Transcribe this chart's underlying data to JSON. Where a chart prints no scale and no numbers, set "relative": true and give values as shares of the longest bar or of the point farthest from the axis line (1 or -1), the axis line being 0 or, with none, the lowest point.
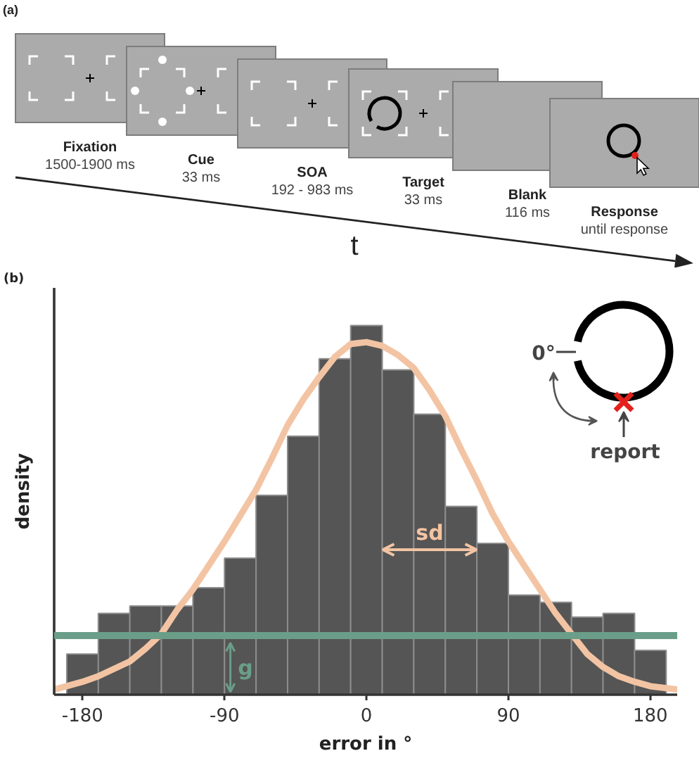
{
  "chart_data": [
    {
      "type": "other",
      "title": "(a)",
      "xlabel": "t",
      "annotations": [
        "Fixation",
        "1500-1900 ms",
        "Cue",
        "33 ms",
        "SOA",
        "192 - 983 ms",
        "Target",
        "33 ms",
        "Blank",
        "116 ms",
        "Response",
        "until response"
      ]
    },
    {
      "type": "histogram",
      "title": "(b)",
      "xlabel": "error in °",
      "ylabel": "density",
      "relative": true,
      "bins": [
        -190,
        -170,
        -150,
        -130,
        -110,
        -90,
        -70,
        -50,
        -30,
        -10,
        10,
        30,
        50,
        70,
        90,
        110,
        130,
        150,
        170,
        190
      ],
      "xlim": [
        -198,
        197
      ],
      "xticks": [
        -180,
        -90,
        0,
        90,
        180
      ],
      "series": [
        {
          "color": "#555555",
          "values": [
            0.11,
            0.22,
            0.24,
            0.24,
            0.29,
            0.37,
            0.54,
            0.7,
            0.91,
            1,
            0.88,
            0.76,
            0.51,
            0.41,
            0.27,
            0.25,
            0.21,
            0.22,
            0.12
          ]
        },
        {
          "type": "line",
          "color": "#f3c4a3",
          "x": [
            -197,
            -180,
            -170,
            -160,
            -150,
            -140,
            -130,
            -120,
            -110,
            -100,
            -90,
            -80,
            -70,
            -60,
            -50,
            -40,
            -30,
            -20,
            -10,
            0,
            10,
            20,
            30,
            40,
            50,
            60,
            70,
            80,
            90,
            100,
            110,
            120,
            130,
            140,
            150,
            160,
            170,
            180,
            197
          ],
          "values": [
            0.015,
            0.035,
            0.05,
            0.07,
            0.09,
            0.125,
            0.165,
            0.23,
            0.285,
            0.35,
            0.415,
            0.485,
            0.555,
            0.64,
            0.73,
            0.8,
            0.86,
            0.915,
            0.95,
            0.955,
            0.945,
            0.92,
            0.885,
            0.825,
            0.755,
            0.665,
            0.58,
            0.49,
            0.415,
            0.35,
            0.285,
            0.22,
            0.165,
            0.11,
            0.075,
            0.05,
            0.035,
            0.023,
            0.014
          ]
        }
      ],
      "ref_lines": [
        {
          "axis": "y",
          "value": 0.16,
          "color": "#6a9e88"
        }
      ],
      "annotations": [
        "sd",
        "g",
        "0°",
        "report"
      ]
    }
  ]
}
